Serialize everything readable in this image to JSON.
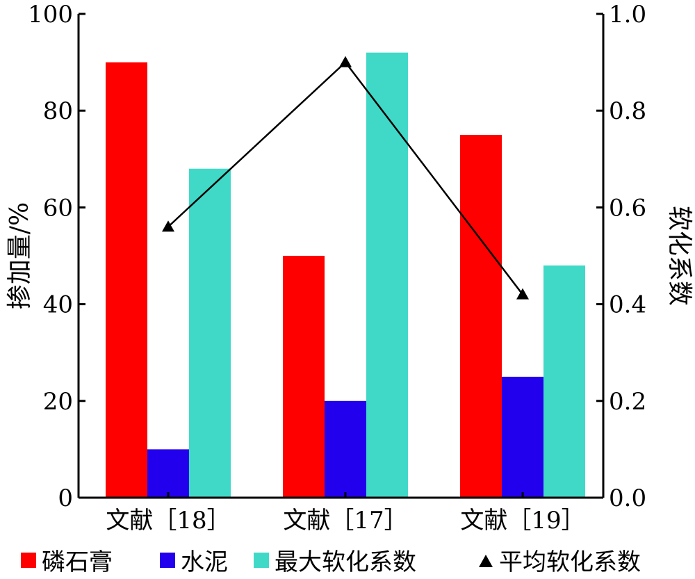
{
  "chart_data": {
    "type": "bar",
    "categories": [
      "文献［18］",
      "文献［17］",
      "文献［19］"
    ],
    "series": [
      {
        "name": "磷石膏",
        "axis": "left",
        "color": "#ff0000",
        "values": [
          90,
          50,
          75
        ]
      },
      {
        "name": "水泥",
        "axis": "left",
        "color": "#2200ee",
        "values": [
          10,
          20,
          25
        ]
      },
      {
        "name": "最大软化系数",
        "axis": "right",
        "color": "#40d9c8",
        "values": [
          0.68,
          0.92,
          0.48
        ]
      }
    ],
    "line_series": {
      "name": "平均软化系数",
      "axis": "right",
      "type": "line",
      "marker": "triangle",
      "color": "#000000",
      "values": [
        0.56,
        0.9,
        0.42
      ]
    },
    "ylabel": "掺加量/%",
    "y2label": "软化系数",
    "ylim": [
      0,
      100
    ],
    "y2lim": [
      0,
      1
    ],
    "yticks": [
      "0",
      "20",
      "40",
      "60",
      "80",
      "100"
    ],
    "y2ticks": [
      "0.0",
      "0.2",
      "0.4",
      "0.6",
      "0.8",
      "1.0"
    ],
    "legend_position": "bottom",
    "grid": false
  }
}
